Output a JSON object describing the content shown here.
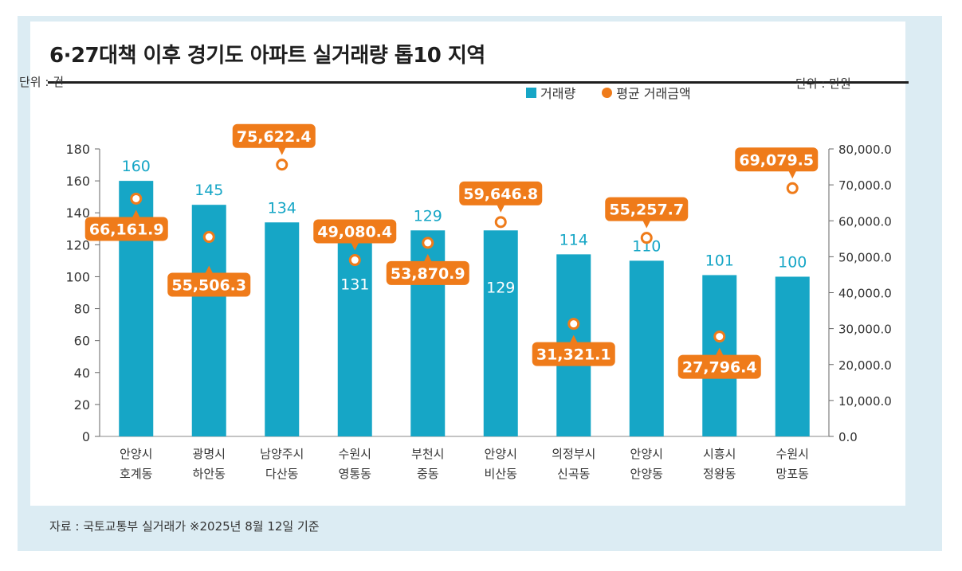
{
  "chart_data": {
    "type": "bar+scatter",
    "title": "6·27대책 이후 경기도 아파트 실거래량 톱10 지역",
    "left_unit": "단위 : 건",
    "right_unit": "단위 : 만원",
    "legend": [
      "거래량",
      "평균 거래금액"
    ],
    "categories": [
      [
        "안양시",
        "호계동"
      ],
      [
        "광명시",
        "하안동"
      ],
      [
        "남양주시",
        "다산동"
      ],
      [
        "수원시",
        "영통동"
      ],
      [
        "부천시",
        "중동"
      ],
      [
        "안양시",
        "비산동"
      ],
      [
        "의정부시",
        "신곡동"
      ],
      [
        "안양시",
        "안양동"
      ],
      [
        "시흥시",
        "정왕동"
      ],
      [
        "수원시",
        "망포동"
      ]
    ],
    "series": [
      {
        "name": "거래량",
        "axis": "left",
        "values": [
          160,
          145,
          134,
          131,
          129,
          129,
          114,
          110,
          101,
          100
        ],
        "labels": [
          "160",
          "145",
          "134",
          "131",
          "129",
          "129",
          "114",
          "110",
          "101",
          "100"
        ]
      },
      {
        "name": "평균 거래금액",
        "axis": "right",
        "values": [
          66161.9,
          55506.3,
          75622.4,
          49080.4,
          53870.9,
          59646.8,
          31321.1,
          55257.7,
          27796.4,
          69079.5
        ],
        "labels": [
          "66,161.9",
          "55,506.3",
          "75,622.4",
          "49,080.4",
          "53,870.9",
          "59,646.8",
          "31,321.1",
          "55,257.7",
          "27,796.4",
          "69,079.5"
        ]
      }
    ],
    "left_ylim": [
      0,
      180
    ],
    "left_ticks": [
      "0",
      "20",
      "40",
      "60",
      "80",
      "100",
      "120",
      "140",
      "160",
      "180"
    ],
    "right_ylim": [
      0,
      80000
    ],
    "right_ticks": [
      "0.0",
      "10,000.0",
      "20,000.0",
      "30,000.0",
      "40,000.0",
      "50,000.0",
      "60,000.0",
      "70,000.0",
      "80,000.0"
    ],
    "source": "자료 : 국토교통부 실거래가  ※2025년 8월 12일 기준",
    "colors": {
      "bar": "#16a6c6",
      "point": "#ef7b1a",
      "bar_label": "#16a6c6",
      "label_bg": "#ef7b1a"
    }
  }
}
